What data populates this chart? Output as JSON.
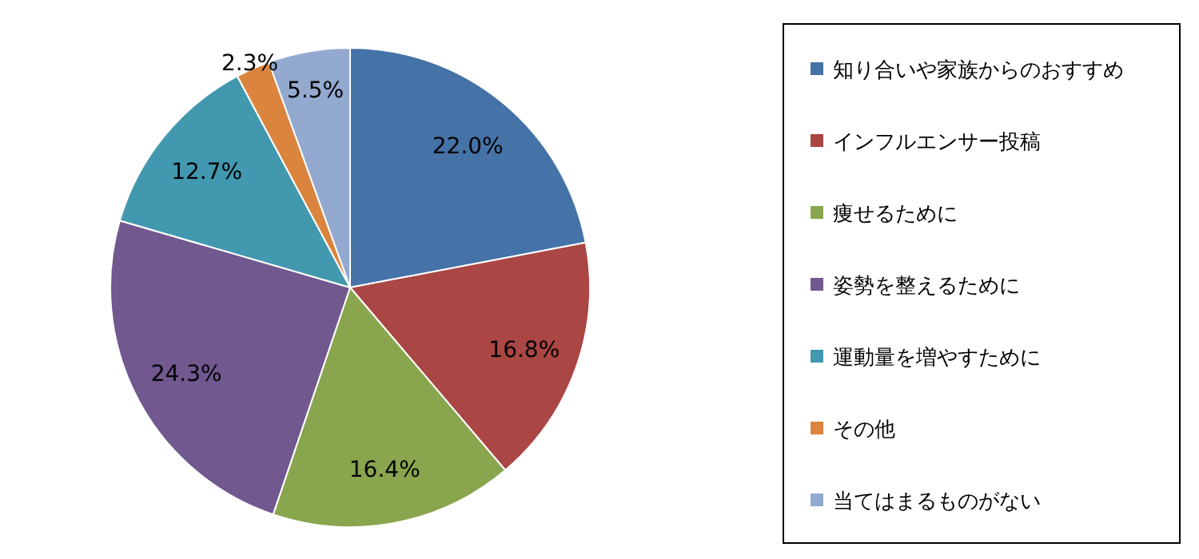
{
  "chart_data": {
    "type": "pie",
    "categories": [
      "知り合いや家族からのおすすめ",
      "インフルエンサー投稿",
      "痩せるために",
      "姿勢を整えるために",
      "運動量を増やすために",
      "その他",
      "当てはまるものがない"
    ],
    "values": [
      22.0,
      16.8,
      16.4,
      24.3,
      12.7,
      2.3,
      5.5
    ],
    "value_labels": [
      "22.0%",
      "16.8%",
      "16.4%",
      "24.3%",
      "12.7%",
      "2.3%",
      "5.5%"
    ],
    "colors": [
      "#4572a7",
      "#aa4643",
      "#89a54e",
      "#71588f",
      "#4198af",
      "#db843d",
      "#93a9cf"
    ],
    "legend": "right"
  }
}
